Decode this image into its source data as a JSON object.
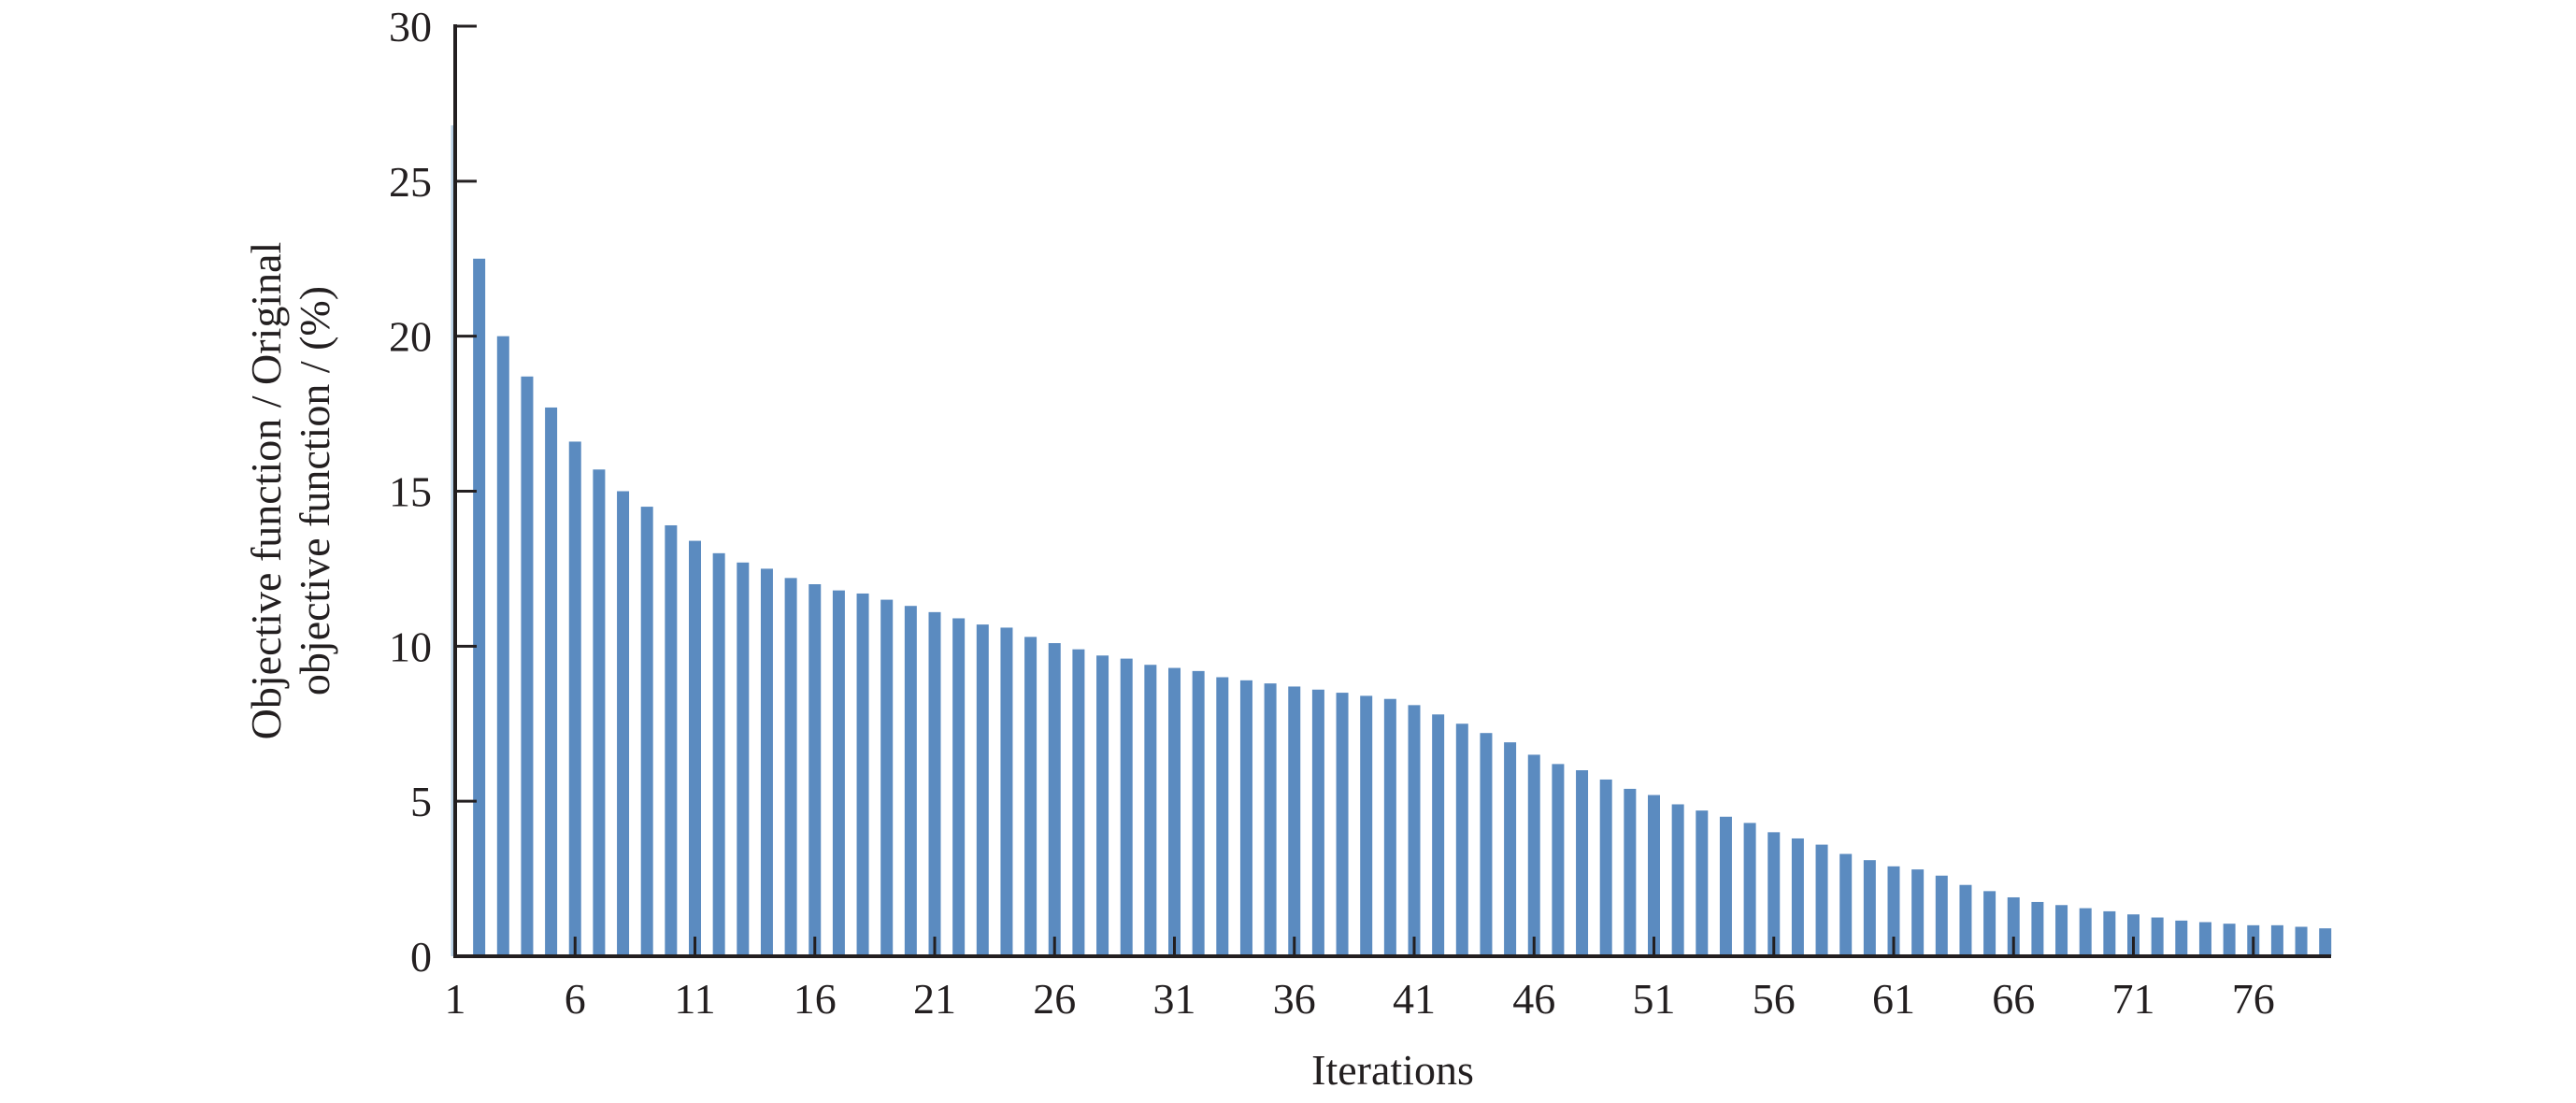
{
  "chart_data": {
    "type": "bar",
    "title": "",
    "xlabel": "Iterations",
    "ylabel": [
      "Objective function / Original",
      "objective function / (%)"
    ],
    "ylim": [
      0,
      30
    ],
    "yticks": [
      0,
      5,
      10,
      15,
      20,
      25,
      30
    ],
    "xticks": [
      1,
      6,
      11,
      16,
      21,
      26,
      31,
      36,
      41,
      46,
      51,
      56,
      61,
      66,
      71,
      76
    ],
    "grid": false,
    "bar_color": "#5b8bc0",
    "categories": [
      1,
      2,
      3,
      4,
      5,
      6,
      7,
      8,
      9,
      10,
      11,
      12,
      13,
      14,
      15,
      16,
      17,
      18,
      19,
      20,
      21,
      22,
      23,
      24,
      25,
      26,
      27,
      28,
      29,
      30,
      31,
      32,
      33,
      34,
      35,
      36,
      37,
      38,
      39,
      40,
      41,
      42,
      43,
      44,
      45,
      46,
      47,
      48,
      49,
      50,
      51,
      52,
      53,
      54,
      55,
      56,
      57,
      58,
      59,
      60,
      61,
      62,
      63,
      64,
      65,
      66,
      67,
      68,
      69,
      70,
      71,
      72,
      73,
      74,
      75,
      76,
      77,
      78,
      79
    ],
    "values": [
      26.8,
      22.5,
      20.0,
      18.7,
      17.7,
      16.6,
      15.7,
      15.0,
      14.5,
      13.9,
      13.4,
      13.0,
      12.7,
      12.5,
      12.2,
      12.0,
      11.8,
      11.7,
      11.5,
      11.3,
      11.1,
      10.9,
      10.7,
      10.6,
      10.3,
      10.1,
      9.9,
      9.7,
      9.6,
      9.4,
      9.3,
      9.2,
      9.0,
      8.9,
      8.8,
      8.7,
      8.6,
      8.5,
      8.4,
      8.3,
      8.1,
      7.8,
      7.5,
      7.2,
      6.9,
      6.5,
      6.2,
      6.0,
      5.7,
      5.4,
      5.2,
      4.9,
      4.7,
      4.5,
      4.3,
      4.0,
      3.8,
      3.6,
      3.3,
      3.1,
      2.9,
      2.8,
      2.6,
      2.3,
      2.1,
      1.9,
      1.75,
      1.65,
      1.55,
      1.45,
      1.35,
      1.25,
      1.15,
      1.1,
      1.05,
      1.0,
      1.0,
      0.95,
      0.9
    ]
  }
}
